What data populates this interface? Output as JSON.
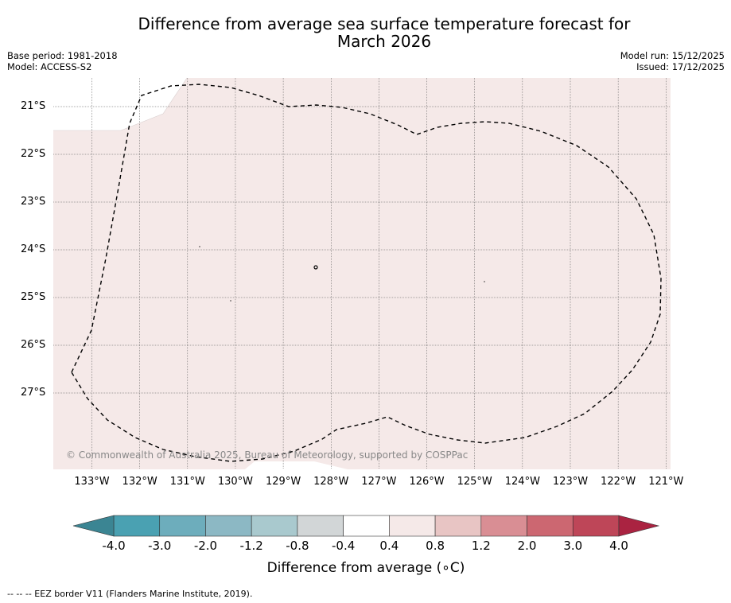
{
  "title": {
    "line1": "Difference from average sea surface temperature forecast for",
    "line2": "March 2026"
  },
  "meta": {
    "base_period": "Base period: 1981-2018",
    "model": "Model: ACCESS-S2",
    "model_run": "Model run: 15/12/2025",
    "issued": "Issued: 17/12/2025"
  },
  "map": {
    "latitudes": [
      "21°S",
      "22°S",
      "23°S",
      "24°S",
      "25°S",
      "26°S",
      "27°S"
    ],
    "longitudes": [
      "133°W",
      "132°W",
      "131°W",
      "130°W",
      "129°W",
      "128°W",
      "127°W",
      "126°W",
      "125°W",
      "124°W",
      "123°W",
      "122°W",
      "121°W"
    ],
    "fill_color": "#f5e9e8",
    "dominant_anomaly_range": "0.4 to 0.8",
    "copyright": "© Commonwealth of Australia 2025, Bureau of Meteorology, supported by COSPPac"
  },
  "colorbar": {
    "ticks": [
      "-4.0",
      "-3.0",
      "-2.0",
      "-1.2",
      "-0.8",
      "-0.4",
      "0.4",
      "0.8",
      "1.2",
      "2.0",
      "3.0",
      "4.0"
    ],
    "colors": [
      "#4aa1b2",
      "#6dadbc",
      "#8cb8c4",
      "#a9c9ce",
      "#d2d6d7",
      "#ffffff",
      "#f5e9e8",
      "#e8c5c4",
      "#d98e94",
      "#cc6771",
      "#be4658"
    ],
    "low_extend_color": "#3b8593",
    "high_extend_color": "#aa2341",
    "label": "Difference from average (∘C)"
  },
  "footnote": "-- -- -- EEZ border V11 (Flanders Marine Institute, 2019)."
}
